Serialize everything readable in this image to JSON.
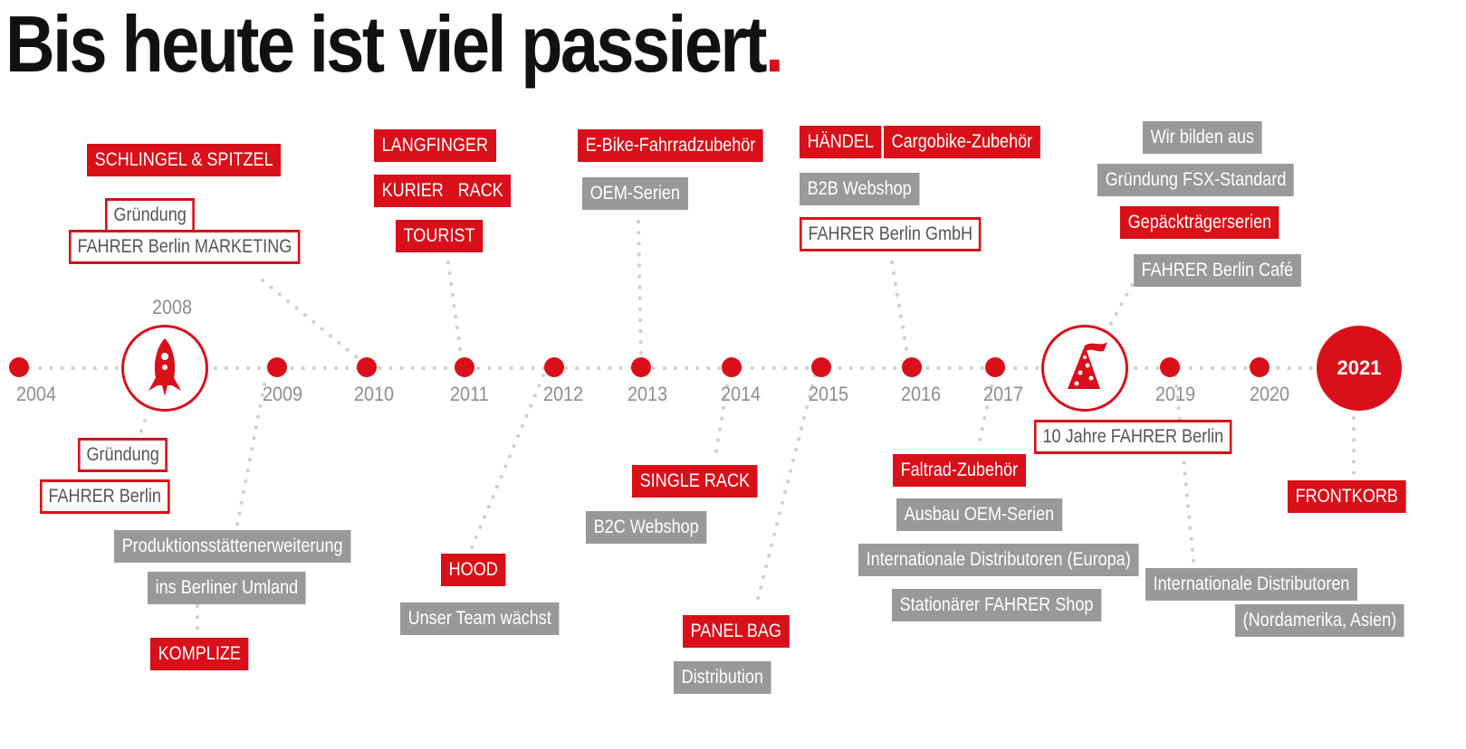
{
  "title": {
    "main": "Bis heute ist viel passiert",
    "dot": "."
  },
  "years": [
    "2004",
    "2008",
    "2009",
    "2010",
    "2011",
    "2012",
    "2013",
    "2014",
    "2015",
    "2016",
    "2017",
    "2019",
    "2020",
    "2021"
  ],
  "labels": {
    "schlingel": "SCHLINGEL & SPITZEL",
    "gruendung_marketing": "Gründung",
    "fahrer_marketing": "FAHRER Berlin MARKETING",
    "gruendung_2004": "Gründung",
    "fahrer_berlin": "FAHRER Berlin",
    "produktion1": "Produktionsstättenerweiterung",
    "produktion2": "ins Berliner Umland",
    "komplize": "KOMPLIZE",
    "langfinger": "LANGFINGER",
    "kurier": "KURIER",
    "rack": "RACK",
    "tourist": "TOURIST",
    "hood": "HOOD",
    "team": "Unser Team wächst",
    "ebike": "E-Bike-Fahrradzubehör",
    "oem": "OEM-Serien",
    "single_rack": "SINGLE RACK",
    "b2c": "B2C Webshop",
    "panel_bag": "PANEL BAG",
    "distribution": "Distribution",
    "haendel": "HÄNDEL",
    "cargobike": "Cargobike-Zubehör",
    "b2b": "B2B Webshop",
    "gmbh": "FAHRER Berlin GmbH",
    "faltrad": "Faltrad-Zubehör",
    "ausbau": "Ausbau OEM-Serien",
    "intl_europa": "Internationale Distributoren (Europa)",
    "stationaer": "Stationärer FAHRER Shop",
    "zehn_jahre": "10 Jahre FAHRER Berlin",
    "ausbilden": "Wir bilden aus",
    "fsx": "Gründung FSX-Standard",
    "gepaeck": "Gepäckträgerserien",
    "cafe": "FAHRER Berlin Café",
    "intl1": "Internationale Distributoren",
    "intl2": "(Nordamerika, Asien)",
    "frontkorb": "FRONTKORB"
  },
  "icons": {
    "milestone_2008": "rocket-icon",
    "milestone_2018": "party-hat-icon"
  },
  "colors": {
    "accent": "#d90f19",
    "gray": "#999999",
    "text": "#111111"
  }
}
